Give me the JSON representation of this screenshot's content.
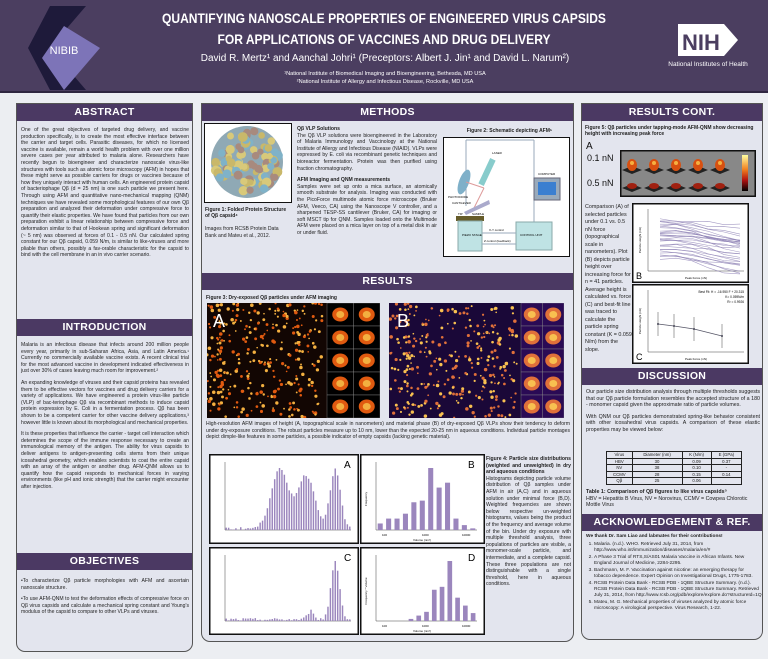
{
  "header": {
    "title_line1": "QUANTIFYING NANOSCALE PROPERTIES OF ENGINEERED VIRUS CAPSIDS",
    "title_line2": "FOR APPLICATIONS OF VACCINES AND DRUG DELIVERY",
    "authors": "David R. Mertz¹ and Aanchal Johri¹ (Preceptors: Albert J. Jin¹ and David L. Narum²)",
    "affiliation1": "¹National Institute of Biomedical Imaging and Bioengineering, Bethesda, MD USA",
    "affiliation2": "²National Institute of Allergy and Infectious Disease, Rockville, MD USA",
    "left_logo": "NIBIB",
    "right_logo": "NIH",
    "right_logo_sub": "National Institutes of Health"
  },
  "colors": {
    "header_bg": "#4b3e60",
    "section_bar": "#4b3963",
    "panel_bg": "#e3e5ee",
    "histogram_bar": "#9b86bd"
  },
  "abstract": {
    "heading": "ABSTRACT",
    "text": "One of the great objectives of targeted drug delivery, and vaccine production specifically, is to create the most effective interface between the carrier and target cells. Parasitic diseases, for which no licensed vaccine is available, remain a world health problem with over one million severe cases per year attributed to malaria alone. Researchers have recently begun to bioengineer and characterize nanoscale virus-like structures with tools such as atomic force microscopy (AFM) in hopes that these might serve as possible carriers for drugs or vaccines because of how they uniquely interact with human cells. An engineered protein capsid of bacteriophage Qβ (d = 25 nm) is one such particle we present here. Through using AFM and quantitative nano-mechanical mapping (QNM) techniques we have revealed some morphological features of our own Qβ preparation and analyzed their deformation under compressive force to quantify their elastic properties. We have found that particles from our own preparation exhibit a linear relationship between compressive force and deformation similar to that of Hookean spring and significant deformation (~ 5 nm) was observed at forces of 0.1 - 0.5 nN. Our calculated spring constant for our Qβ capsid, 0.059 N/m, is similar to like-viruses and more pliable than others, possibly a fav-orable characteristic for the capsid to bind with the cell membrane in an in vivo carrier scenario."
  },
  "introduction": {
    "heading": "INTRODUCTION",
    "paragraphs": [
      "Malaria is an infectious disease that infects around 200 million people every year, primarily in sub-Saharan Africa, Asia, and Latin America.¹ Currently no commercially available vaccine exists. A recent clinical trial for the most advanced vaccine in development indicated effectiveness in just over 30% of cases leaving much room for improvement.²",
      "An expanding knowledge of viruses and their capsid proteins has revealed them to be effective vectors for vaccines and drug delivery carriers for a variety of applications. We have engineered a protein virus-like particle (VLP) of bac-teriophage Qβ via recombinant methods to induce capsid protein expression by E. Coli in a fermentation process. Qβ has been shown to be a competent carrier for other vaccine delivery applications,³ however little is known about its morphological and mechanical properties.",
      "It is these properties that influence the carrier - target cell interaction which determines the scope of the immune response necessary to create an immunological memory of the antigen. The ability for virus capsids to deliver antigens to antigen-presenting cells stems from their unique icosahedral geometry, which enables scientists to coat the entire capsid with an array of the antigen or another drug. AFM-QNM allows us to quantify how the capsid responds to mechanical forces in varying environments (like pH and ionic strength) that the carrier might encounter after injection."
    ]
  },
  "objectives": {
    "heading": "OBJECTIVES",
    "items": [
      "•To characterize Qβ particle morphologies with AFM and ascertain nanoscale structure.",
      "•To use AFM-QNM to test the deformation effects of compressive force on Qβ virus capsids and calculate a mechanical spring constant and Young's modulus of the capsid to compare to other VLPs and viruses."
    ]
  },
  "methods": {
    "heading": "METHODS",
    "fig1_caption": "Figure 1: Folded Protein Structure of Qβ capsid⁴",
    "fig1_source": "Images from RCSB Protein Data Bank and Mateu et al., 2012.",
    "sub1": "Qβ VLP Solutions",
    "text1": "The Qβ VLP solutions were bioengineered in the Laboratory of Malaria Immunology and Vaccinology at the National Institute of Allergy and Infectious Disease (NIAID). VLPs were expressed by E. coli via recombinant genetic techniques and bioreactor fermentation. Protein was then purified using fraction chromatography.",
    "sub2": "AFM Imaging and QNM measurements",
    "text2": "Samples were set up onto a mica surface, an atomically smooth substrate for analysis. Imaging was conducted with the PicoForce multimode atomic force microscope (Bruker AFM, Veeco, CA) using the Nanoscope V controller, and a sharpened TESP-SS cantilever (Bruker, CA) for imaging or soft MSCT tip for QNM. Samples loaded onto the Multimode AFM were placed on a mica layer on top of a metal disk in air or under fluid.",
    "fig2_caption": "Figure 2: Schematic depicting AFM⁵",
    "fig2_labels": {
      "laser": "LASER",
      "photodiode": "PHOTODIODE",
      "cantilever": "CANTILEVER",
      "tip": "TIP",
      "sample": "SAMPLE",
      "stage": "PIEZO STAGE",
      "control": "CONTROL UNIT",
      "computer": "COMPUTER",
      "xy": "X-Y control",
      "feedback": "Z control (feedback)"
    }
  },
  "results": {
    "heading": "RESULTS",
    "fig3_caption": "Figure 3: Dry-exposed Qβ particles under AFM imaging",
    "fig3_label_a": "A",
    "fig3_label_b": "B",
    "fig3_text": "High-resolution AFM images of height (A, topographical scale in nanometers) and material phase (B) of dry-exposed Qβ VLPs show their tendency to deform under dry-exposure conditions. The robust particles measure up to 10 nm, lower than the expected 20-25 nm in aqueous conditions. Individual particle montages depict dimple-like features in some particles, a possible indicator of empty capsids (lacking genetic material).",
    "hist_labels": [
      "A",
      "B",
      "C",
      "D"
    ],
    "hist_b": {
      "ylabel": "Frequency",
      "xlabel": "Volume (nm³)",
      "xticks": [
        "100",
        "1000",
        "10000"
      ],
      "values": [
        4,
        7,
        7,
        10,
        17,
        18,
        38,
        26,
        29,
        7,
        3,
        1
      ]
    },
    "hist_d": {
      "ylabel": "Frequency * Volume",
      "xlabel": "Volume (nm³)",
      "xticks": [
        "100",
        "1000",
        "10000"
      ],
      "values": [
        0,
        0,
        0,
        0,
        50000,
        130000,
        220000,
        750000,
        820000,
        1440000,
        560000,
        370000,
        190000
      ]
    },
    "fig4_caption": "Figure 4: Particle size distributions (weighted and unweighted) in dry and aqueous conditions",
    "fig4_text": "Histograms depicting particle volume distribution of Qβ samples under AFM in air (A,C) and in aqueous solution under minimal force (B,D). Weighted frequencies are shown below respective un-weighted histograms, values being the product of the frequency and average volume of the bin. Under dry exposure with multiple threshold analysis, three populations of particles are visible, a monomer-scale particle, and intermediate, and a complete capsid. These three populations are not distinguishable with a single threshold, here in aqueous conditions."
  },
  "results_cont": {
    "heading": "RESULTS CONT.",
    "fig5_caption": "Figure 5: Qβ particles under tapping-mode AFM-QNM show decreasing height with increasing peak force",
    "label_a": "A",
    "label_b": "B",
    "label_c": "C",
    "force1": "0.1 nN",
    "force2": "0.5 nN",
    "text": "Comparison (A) of selected particles under 0.1 vs. 0.5 nN force (topographical scale in nanometers). Plot (B) depicts particle height over increasing force for n = 41 particles. Average height is calculated vs. force (C) and best-fit line was traced to calculate the particle spring constant (K = 0.059 N/m) from the slope.",
    "plot_xlabel": "Peak Force (nN)",
    "plot_ylabel": "Particle Height (nm)",
    "fit_line1": "Best Fit: H = -16.950 F + 20.315",
    "fit_line2": "K= 0.059N/m",
    "fit_line3": "R² = 0.9926"
  },
  "discussion": {
    "heading": "DISCUSSION",
    "p1": "Our particle size distribution analysis through multiple thresholds suggests that our Qβ particle formulation resembles the accepted structure of a 180 - monomer capsid given the approximate ratio of particle volumes.",
    "p2": "With QNM our Qβ particles demonstrated spring-like behavior consistent with other icosahedral virus capsids. A comparison of these elastic properties may be viewed below:",
    "table": {
      "headers": [
        "Virus",
        "Diameter (nm)",
        "K (N/m)",
        "E (GPa)"
      ],
      "rows": [
        [
          "HBV",
          "30",
          "0.09",
          "0.37"
        ],
        [
          "NV",
          "38",
          "0.10",
          "-"
        ],
        [
          "CCMV",
          "28",
          "0.15",
          "0.14"
        ],
        [
          "Qβ",
          "25",
          "0.06",
          ""
        ]
      ]
    },
    "table_caption": "Table 1: Comparison of Qβ figures to like virus capsids⁵",
    "table_note": "HBV = Hepatitis B Virus, NV = Norovirus, CCMV = Cowpea Chlorotic Mottle Virus"
  },
  "acknowledgement": {
    "heading": "ACKNOWLEDGEMENT & REF.",
    "thanks": "We thank Dr. Sam Liao and labmates for their contributions!",
    "refs": [
      "Malaria. (n.d.). WHO. Retrieved July 31, 2014, from http://www.who.int/immunization/diseases/malaria/en/#",
      "A Phase 3 Trial of RTS,S/AS01 Malaria Vaccine in African Infants. New England Journal of Medicine, 2284-2295.",
      "Bachmann, M. F. Vaccination against nicotine: an emerging therapy for tobacco dependence. Expert Opinion on Investigational Drugs, 1775-1783.",
      "RCSB Protein Data Bank - RCSB PDB - 1QBE Structure Summary. (n.d.). RCSB Protein Data Bank - RCSB PDB - 1QBE Structure Summary. Retrieved July 31, 2014, from http://www.rcsb.org/pdb/explore/explore.do?structureId=1Q",
      "Mateu, M. G. Mechanical properties of viruses analyzed by atomic force microscopy: A virological perspective. Virus Research, 1-22."
    ]
  }
}
